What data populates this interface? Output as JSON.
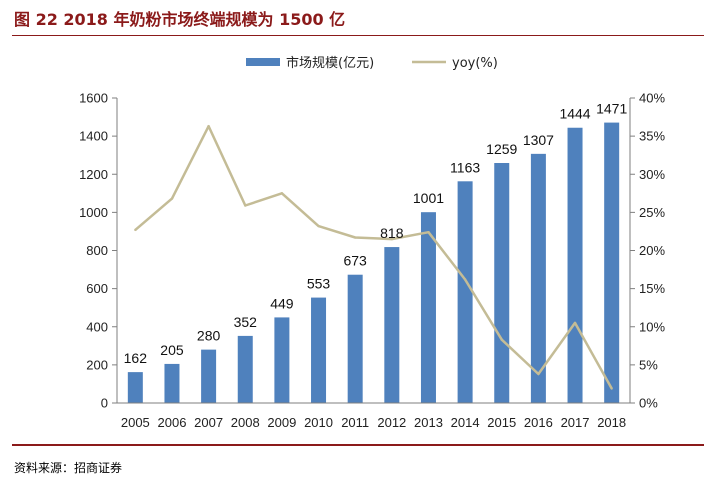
{
  "header": {
    "title": "图 22 2018 年奶粉市场终端规模为 1500 亿"
  },
  "footer": {
    "source": "资料来源：招商证券"
  },
  "chart_data": {
    "type": "bar",
    "title": "图 22 2018 年奶粉市场终端规模为 1500 亿",
    "categories": [
      "2005",
      "2006",
      "2007",
      "2008",
      "2009",
      "2010",
      "2011",
      "2012",
      "2013",
      "2014",
      "2015",
      "2016",
      "2017",
      "2018"
    ],
    "series": [
      {
        "name": "市场规模(亿元)",
        "type": "bar",
        "axis": "left",
        "values": [
          162,
          205,
          280,
          352,
          449,
          553,
          673,
          818,
          1001,
          1163,
          1259,
          1307,
          1444,
          1471
        ]
      },
      {
        "name": "yoy(%)",
        "type": "line",
        "axis": "right",
        "values": [
          22.7,
          26.8,
          36.3,
          25.9,
          27.5,
          23.2,
          21.7,
          21.5,
          22.4,
          16.2,
          8.3,
          3.8,
          10.5,
          1.9
        ]
      }
    ],
    "y_left": {
      "ylim": [
        0,
        1600
      ],
      "ticks": [
        "0",
        "200",
        "400",
        "600",
        "800",
        "1000",
        "1200",
        "1400",
        "1600"
      ]
    },
    "y_right": {
      "ylim": [
        0,
        40
      ],
      "ticks": [
        "0%",
        "5%",
        "10%",
        "15%",
        "20%",
        "25%",
        "30%",
        "35%",
        "40%"
      ]
    },
    "colors": {
      "bar": "#4f81bd",
      "line": "#c4bc96"
    },
    "legend": "top-center",
    "grid": false
  }
}
